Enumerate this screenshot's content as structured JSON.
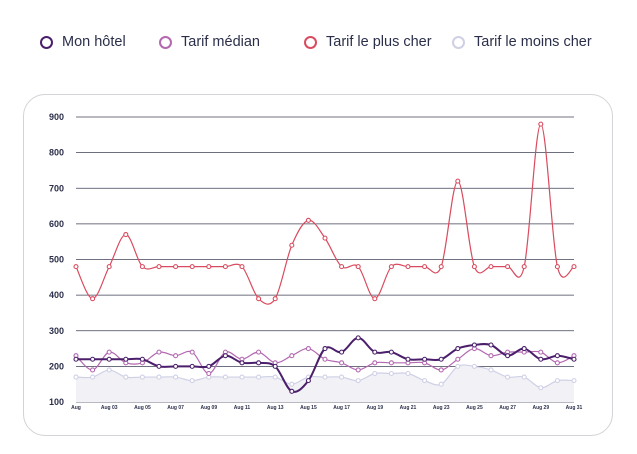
{
  "legend": [
    {
      "label": "Mon hôtel",
      "color": "#4b1f6b"
    },
    {
      "label": "Tarif médian",
      "color": "#b368b0"
    },
    {
      "label": "Tarif le plus cher",
      "color": "#d94b5e"
    },
    {
      "label": "Tarif le moins cher",
      "color": "#cfd0e6"
    }
  ],
  "chart_data": {
    "type": "line",
    "title": "",
    "xlabel": "",
    "ylabel": "",
    "ylim": [
      100,
      900
    ],
    "yticks": [
      100,
      200,
      300,
      400,
      500,
      600,
      700,
      800,
      900
    ],
    "grid": "horizontal",
    "legend_position": "top",
    "xtick_labels": [
      "Aug",
      "Aug 03",
      "Aug 05",
      "Aug 07",
      "Aug 09",
      "Aug 11",
      "Aug 13",
      "Aug 15",
      "Aug 17",
      "Aug 19",
      "Aug 21",
      "Aug 23",
      "Aug 25",
      "Aug 27",
      "Aug 29",
      "Aug 31"
    ],
    "x": [
      1,
      2,
      3,
      4,
      5,
      6,
      7,
      8,
      9,
      10,
      11,
      12,
      13,
      14,
      15,
      16,
      17,
      18,
      19,
      20,
      21,
      22,
      23,
      24,
      25,
      26,
      27,
      28,
      29,
      30,
      31
    ],
    "series": [
      {
        "name": "Tarif le moins cher",
        "color": "#cfd0e6",
        "values": [
          170,
          170,
          190,
          170,
          170,
          170,
          170,
          160,
          170,
          170,
          170,
          170,
          170,
          150,
          170,
          170,
          170,
          160,
          180,
          180,
          180,
          160,
          150,
          200,
          200,
          190,
          170,
          170,
          140,
          160,
          160
        ]
      },
      {
        "name": "Tarif médian",
        "color": "#b368b0",
        "values": [
          230,
          190,
          240,
          210,
          210,
          240,
          230,
          240,
          180,
          240,
          220,
          240,
          210,
          230,
          250,
          220,
          210,
          190,
          210,
          210,
          210,
          210,
          190,
          220,
          250,
          230,
          240,
          240,
          240,
          210,
          230
        ]
      },
      {
        "name": "Tarif le plus cher",
        "color": "#d94b5e",
        "values": [
          480,
          390,
          480,
          570,
          480,
          480,
          480,
          480,
          480,
          480,
          480,
          390,
          390,
          540,
          610,
          560,
          480,
          480,
          390,
          480,
          480,
          480,
          480,
          720,
          480,
          480,
          480,
          480,
          880,
          480,
          480
        ]
      },
      {
        "name": "Mon hôtel",
        "color": "#4b1f6b",
        "values": [
          220,
          220,
          220,
          220,
          220,
          200,
          200,
          200,
          200,
          230,
          210,
          210,
          200,
          130,
          160,
          250,
          240,
          280,
          240,
          240,
          220,
          220,
          220,
          250,
          260,
          260,
          230,
          250,
          220,
          230,
          220
        ]
      }
    ]
  }
}
